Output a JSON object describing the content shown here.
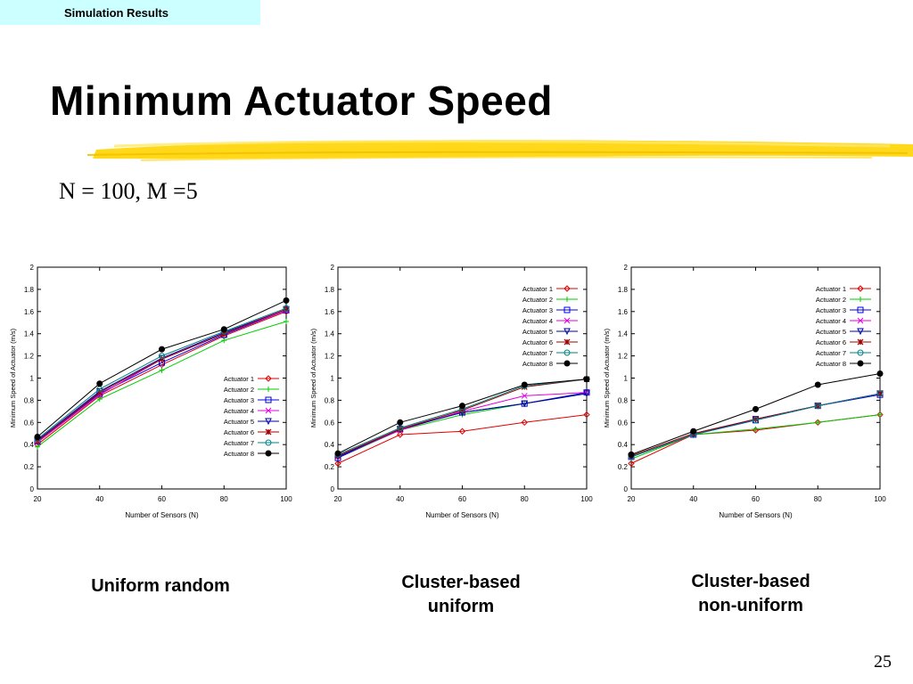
{
  "section_tag": "Simulation Results",
  "title": "Minimum Actuator Speed",
  "subtitle": "N = 100, M =5",
  "page_number": "25",
  "captions": [
    [
      "Uniform random"
    ],
    [
      "Cluster-based",
      "uniform"
    ],
    [
      "Cluster-based",
      "non-uniform"
    ]
  ],
  "series_colors": [
    "#e00000",
    "#00cc00",
    "#0000e0",
    "#e000e0",
    "#0000a0",
    "#a00000",
    "#008080",
    "#000000"
  ],
  "chart_data": [
    {
      "type": "line",
      "title": "",
      "xlabel": "Number of Sensors (N)",
      "ylabel": "Minimum Speed of Actuator (m/s)",
      "x": [
        20,
        40,
        60,
        80,
        100
      ],
      "xlim": [
        20,
        100
      ],
      "ylim": [
        0,
        2
      ],
      "xticks": [
        20,
        40,
        60,
        80,
        100
      ],
      "yticks": [
        0,
        0.2,
        0.4,
        0.6,
        0.8,
        1,
        1.2,
        1.4,
        1.6,
        1.8,
        2
      ],
      "grid": false,
      "legend_position": "bottom-right",
      "series": [
        {
          "name": "Actuator 1",
          "marker": "diamond",
          "values": [
            0.4,
            0.84,
            1.12,
            1.38,
            1.6
          ]
        },
        {
          "name": "Actuator 2",
          "marker": "plus",
          "values": [
            0.38,
            0.81,
            1.07,
            1.34,
            1.51
          ]
        },
        {
          "name": "Actuator 3",
          "marker": "square",
          "values": [
            0.43,
            0.86,
            1.14,
            1.39,
            1.61
          ]
        },
        {
          "name": "Actuator 4",
          "marker": "x",
          "values": [
            0.42,
            0.85,
            1.17,
            1.4,
            1.61
          ]
        },
        {
          "name": "Actuator 5",
          "marker": "triangle-down",
          "values": [
            0.44,
            0.88,
            1.18,
            1.41,
            1.62
          ]
        },
        {
          "name": "Actuator 6",
          "marker": "star",
          "values": [
            0.43,
            0.87,
            1.17,
            1.4,
            1.62
          ]
        },
        {
          "name": "Actuator 7",
          "marker": "circle",
          "values": [
            0.45,
            0.9,
            1.2,
            1.42,
            1.63
          ]
        },
        {
          "name": "Actuator 8",
          "marker": "filled-circle",
          "values": [
            0.47,
            0.95,
            1.26,
            1.44,
            1.7
          ]
        }
      ]
    },
    {
      "type": "line",
      "title": "",
      "xlabel": "Number of Sensors (N)",
      "ylabel": "Minimum Speed of Actuator (m/s)",
      "x": [
        20,
        40,
        60,
        80,
        100
      ],
      "xlim": [
        20,
        100
      ],
      "ylim": [
        0,
        2
      ],
      "xticks": [
        20,
        40,
        60,
        80,
        100
      ],
      "yticks": [
        0,
        0.2,
        0.4,
        0.6,
        0.8,
        1,
        1.2,
        1.4,
        1.6,
        1.8,
        2
      ],
      "grid": false,
      "legend_position": "top-right",
      "series": [
        {
          "name": "Actuator 1",
          "marker": "diamond",
          "values": [
            0.23,
            0.49,
            0.52,
            0.6,
            0.67
          ]
        },
        {
          "name": "Actuator 2",
          "marker": "plus",
          "values": [
            0.28,
            0.53,
            0.67,
            0.77,
            0.86
          ]
        },
        {
          "name": "Actuator 3",
          "marker": "square",
          "values": [
            0.28,
            0.54,
            0.69,
            0.77,
            0.87
          ]
        },
        {
          "name": "Actuator 4",
          "marker": "x",
          "values": [
            0.29,
            0.53,
            0.7,
            0.84,
            0.87
          ]
        },
        {
          "name": "Actuator 5",
          "marker": "triangle-down",
          "values": [
            0.29,
            0.54,
            0.69,
            0.77,
            0.86
          ]
        },
        {
          "name": "Actuator 6",
          "marker": "star",
          "values": [
            0.3,
            0.54,
            0.71,
            0.92,
            0.99
          ]
        },
        {
          "name": "Actuator 7",
          "marker": "circle",
          "values": [
            0.31,
            0.55,
            0.72,
            0.93,
            0.99
          ]
        },
        {
          "name": "Actuator 8",
          "marker": "filled-circle",
          "values": [
            0.32,
            0.6,
            0.75,
            0.94,
            0.99
          ]
        }
      ]
    },
    {
      "type": "line",
      "title": "",
      "xlabel": "Number of Sensors (N)",
      "ylabel": "Minimum Speed of Actuator (m/s)",
      "x": [
        20,
        40,
        60,
        80,
        100
      ],
      "xlim": [
        20,
        100
      ],
      "ylim": [
        0,
        2
      ],
      "xticks": [
        20,
        40,
        60,
        80,
        100
      ],
      "yticks": [
        0,
        0.2,
        0.4,
        0.6,
        0.8,
        1,
        1.2,
        1.4,
        1.6,
        1.8,
        2
      ],
      "grid": false,
      "legend_position": "top-right",
      "series": [
        {
          "name": "Actuator 1",
          "marker": "diamond",
          "values": [
            0.23,
            0.49,
            0.53,
            0.6,
            0.67
          ]
        },
        {
          "name": "Actuator 2",
          "marker": "plus",
          "values": [
            0.27,
            0.49,
            0.54,
            0.6,
            0.67
          ]
        },
        {
          "name": "Actuator 3",
          "marker": "square",
          "values": [
            0.29,
            0.49,
            0.62,
            0.75,
            0.85
          ]
        },
        {
          "name": "Actuator 4",
          "marker": "x",
          "values": [
            0.29,
            0.49,
            0.63,
            0.75,
            0.86
          ]
        },
        {
          "name": "Actuator 5",
          "marker": "triangle-down",
          "values": [
            0.29,
            0.49,
            0.63,
            0.75,
            0.86
          ]
        },
        {
          "name": "Actuator 6",
          "marker": "star",
          "values": [
            0.3,
            0.5,
            0.63,
            0.75,
            0.86
          ]
        },
        {
          "name": "Actuator 7",
          "marker": "circle",
          "values": [
            0.29,
            0.49,
            0.62,
            0.75,
            0.86
          ]
        },
        {
          "name": "Actuator 8",
          "marker": "filled-circle",
          "values": [
            0.31,
            0.52,
            0.72,
            0.94,
            1.04
          ]
        }
      ]
    }
  ]
}
